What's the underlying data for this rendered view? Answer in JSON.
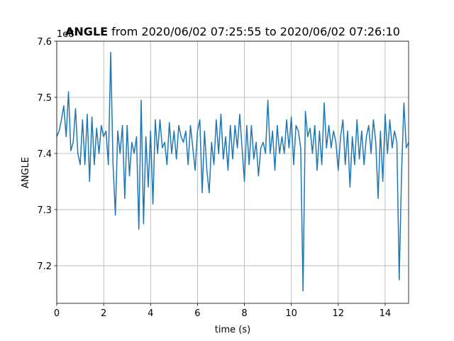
{
  "chart_data": {
    "type": "line",
    "title_bold": "ANGLE",
    "title": "from 2020/06/02 07:25:55 to 2020/06/02 07:26:10",
    "offset_label": "1e8",
    "xlabel": "time (s)",
    "ylabel": "ANGLE",
    "xlim": [
      0,
      15
    ],
    "ylim": [
      7.133,
      7.6
    ],
    "xticks": [
      0,
      2,
      4,
      6,
      8,
      10,
      12,
      14
    ],
    "yticks": [
      7.2,
      7.3,
      7.4,
      7.5,
      7.6
    ],
    "grid": true,
    "x": [
      0,
      0.1,
      0.2,
      0.3,
      0.4,
      0.5,
      0.6,
      0.7,
      0.8,
      0.9,
      1,
      1.1,
      1.2,
      1.3,
      1.4,
      1.5,
      1.6,
      1.7,
      1.8,
      1.9,
      2,
      2.1,
      2.2,
      2.3,
      2.4,
      2.5,
      2.6,
      2.7,
      2.8,
      2.9,
      3,
      3.1,
      3.2,
      3.3,
      3.4,
      3.5,
      3.6,
      3.7,
      3.8,
      3.9,
      4,
      4.1,
      4.2,
      4.3,
      4.4,
      4.5,
      4.6,
      4.7,
      4.8,
      4.9,
      5,
      5.1,
      5.2,
      5.3,
      5.4,
      5.5,
      5.6,
      5.7,
      5.8,
      5.9,
      6,
      6.1,
      6.2,
      6.3,
      6.4,
      6.5,
      6.6,
      6.7,
      6.8,
      6.9,
      7,
      7.1,
      7.2,
      7.3,
      7.4,
      7.5,
      7.6,
      7.7,
      7.8,
      7.9,
      8,
      8.1,
      8.2,
      8.3,
      8.4,
      8.5,
      8.6,
      8.7,
      8.8,
      8.9,
      9,
      9.1,
      9.2,
      9.3,
      9.4,
      9.5,
      9.6,
      9.7,
      9.8,
      9.9,
      10,
      10.1,
      10.2,
      10.3,
      10.4,
      10.5,
      10.6,
      10.7,
      10.8,
      10.9,
      11,
      11.1,
      11.2,
      11.3,
      11.4,
      11.5,
      11.6,
      11.7,
      11.8,
      11.9,
      12,
      12.1,
      12.2,
      12.3,
      12.4,
      12.5,
      12.6,
      12.7,
      12.8,
      12.9,
      13,
      13.1,
      13.2,
      13.3,
      13.4,
      13.5,
      13.6,
      13.7,
      13.8,
      13.9,
      14,
      14.1,
      14.2,
      14.3,
      14.4,
      14.5,
      14.6,
      14.7,
      14.8,
      14.9,
      15
    ],
    "series": [
      {
        "color": "#1f77b4",
        "values": [
          7.43,
          7.44,
          7.46,
          7.485,
          7.43,
          7.51,
          7.405,
          7.42,
          7.48,
          7.4,
          7.38,
          7.46,
          7.38,
          7.47,
          7.35,
          7.465,
          7.38,
          7.445,
          7.4,
          7.45,
          7.43,
          7.44,
          7.38,
          7.58,
          7.38,
          7.29,
          7.44,
          7.4,
          7.45,
          7.32,
          7.45,
          7.36,
          7.42,
          7.4,
          7.43,
          7.265,
          7.495,
          7.275,
          7.43,
          7.34,
          7.44,
          7.31,
          7.46,
          7.4,
          7.46,
          7.41,
          7.42,
          7.38,
          7.455,
          7.4,
          7.44,
          7.39,
          7.45,
          7.43,
          7.42,
          7.44,
          7.38,
          7.45,
          7.41,
          7.37,
          7.44,
          7.46,
          7.33,
          7.44,
          7.37,
          7.33,
          7.42,
          7.38,
          7.46,
          7.4,
          7.47,
          7.39,
          7.43,
          7.37,
          7.45,
          7.39,
          7.45,
          7.41,
          7.47,
          7.41,
          7.35,
          7.45,
          7.38,
          7.45,
          7.39,
          7.42,
          7.36,
          7.41,
          7.42,
          7.4,
          7.495,
          7.4,
          7.44,
          7.37,
          7.45,
          7.4,
          7.43,
          7.4,
          7.46,
          7.41,
          7.465,
          7.38,
          7.45,
          7.44,
          7.41,
          7.155,
          7.475,
          7.43,
          7.445,
          7.4,
          7.45,
          7.37,
          7.44,
          7.38,
          7.49,
          7.41,
          7.45,
          7.41,
          7.44,
          7.42,
          7.37,
          7.43,
          7.46,
          7.38,
          7.44,
          7.34,
          7.43,
          7.38,
          7.46,
          7.39,
          7.44,
          7.38,
          7.43,
          7.45,
          7.4,
          7.46,
          7.42,
          7.32,
          7.44,
          7.35,
          7.47,
          7.4,
          7.46,
          7.41,
          7.44,
          7.42,
          7.175,
          7.365,
          7.49,
          7.41,
          7.42
        ]
      }
    ]
  }
}
